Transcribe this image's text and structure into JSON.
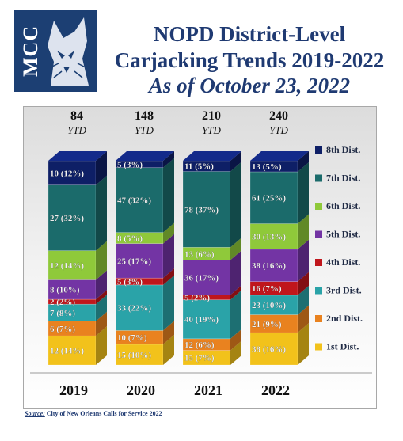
{
  "logo": {
    "text": "MCC"
  },
  "header": {
    "title_line1": "NOPD District-Level",
    "title_line2": "Carjacking Trends 2019-2022",
    "title_line3": "As of October 23, 2022"
  },
  "source": {
    "label": "Source:",
    "text": "City of New Orleans Calls for Service 2022"
  },
  "colors": {
    "1st Dist.": "#f2c21b",
    "2nd Dist.": "#e9821f",
    "3rd Dist.": "#2aa3a8",
    "4th Dist.": "#c0161c",
    "5th Dist.": "#7334a4",
    "6th Dist.": "#8fc93a",
    "7th Dist.": "#1b6b6b",
    "8th Dist.": "#0e1f66"
  },
  "chart_data": {
    "type": "bar",
    "stacked": true,
    "categories": [
      "2019",
      "2020",
      "2021",
      "2022"
    ],
    "totals": [
      84,
      148,
      210,
      240
    ],
    "total_suffix": "YTD",
    "legend_position": "right",
    "series": [
      {
        "name": "1st Dist.",
        "values": [
          12,
          15,
          15,
          38
        ],
        "labels": [
          "12 (14%)",
          "15 (10%)",
          "15 (7%)",
          "38 (16%)"
        ]
      },
      {
        "name": "2nd Dist.",
        "values": [
          6,
          10,
          12,
          21
        ],
        "labels": [
          "6 (7%)",
          "10 (7%)",
          "12 (6%)",
          "21 (9%)"
        ]
      },
      {
        "name": "3rd Dist.",
        "values": [
          7,
          33,
          40,
          23
        ],
        "labels": [
          "7 (8%)",
          "33 (22%)",
          "40 (19%)",
          "23 (10%)"
        ]
      },
      {
        "name": "4th Dist.",
        "values": [
          2,
          5,
          5,
          16
        ],
        "labels": [
          "2 (2%)",
          "5 (3%)",
          "5 (2%)",
          "16 (7%)"
        ]
      },
      {
        "name": "5th Dist.",
        "values": [
          8,
          25,
          36,
          38
        ],
        "labels": [
          "8 (10%)",
          "25 (17%)",
          "36 (17%)",
          "38 (16%)"
        ]
      },
      {
        "name": "6th Dist.",
        "values": [
          12,
          8,
          13,
          30
        ],
        "labels": [
          "12 (14%)",
          "8 (5%)",
          "13 (6%)",
          "30 (13%)"
        ]
      },
      {
        "name": "7th Dist.",
        "values": [
          27,
          47,
          78,
          61
        ],
        "labels": [
          "27 (32%)",
          "47 (32%)",
          "78 (37%)",
          "61 (25%)"
        ]
      },
      {
        "name": "8th Dist.",
        "values": [
          10,
          5,
          11,
          13
        ],
        "labels": [
          "10 (12%)",
          "5 (3%)",
          "11 (5%)",
          "13 (5%)"
        ]
      }
    ]
  }
}
